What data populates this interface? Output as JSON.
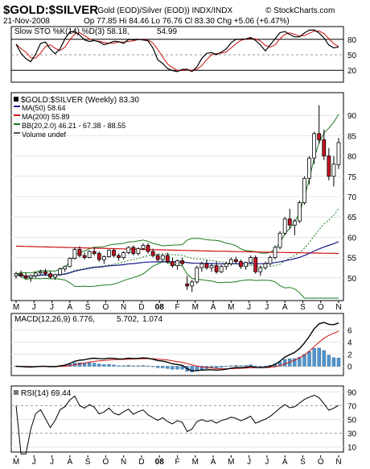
{
  "header": {
    "symbol": "$GOLD:$SILVER",
    "description": "(Gold (EOD)/Silver (EOD))  INDX/INDX",
    "brand": "© StockCharts.com",
    "date": "21-Nov-2008",
    "quote": "Op 77.85  Hi 84.46  Lo 76.76  Cl 83.30  Chg +5.06 (+6.47%)",
    "quote_arrow": "▲"
  },
  "stoch_panel": {
    "label_main": "Slow STO %K(14) %D(3) 58.18,",
    "label_d": "54.99",
    "ticks": [
      "80",
      "50",
      "20"
    ]
  },
  "price_panel": {
    "label": "$GOLD:$SILVER (Weekly) 83.30",
    "legend": [
      {
        "text": "MA(50) 58.64",
        "color": "#1a1a8c"
      },
      {
        "text": "MA(200) 55.89",
        "color": "#cc1111"
      },
      {
        "text": "BB(20,2.0) 46.21 - 67.38 - 88.55",
        "color": "#1a7a1a"
      },
      {
        "text": "Volume undef",
        "color": "#555555"
      }
    ],
    "ticks": [
      "90",
      "85",
      "80",
      "75",
      "70",
      "65",
      "60",
      "55",
      "50"
    ]
  },
  "macd_panel": {
    "label_main": "MACD(12,26,9) 6.776,",
    "label_signal": "5.702,",
    "label_hist": "1.074",
    "ticks": [
      "6",
      "4",
      "2",
      "0"
    ]
  },
  "rsi_panel": {
    "label": "RSI(14) 69.44",
    "ticks": [
      "90",
      "70",
      "50",
      "30",
      "10"
    ]
  },
  "x_axis": {
    "months": [
      "M",
      "J",
      "J",
      "A",
      "S",
      "O",
      "N",
      "D",
      "08",
      "F",
      "M",
      "A",
      "M",
      "J",
      "J",
      "A",
      "S",
      "O",
      "N"
    ]
  },
  "colors": {
    "up": "#ffffff",
    "down": "#cc1122",
    "candle_outline": "#000000",
    "ma50": "#1a1a8c",
    "ma200": "#cc1111",
    "bb": "#1a7a1a",
    "macd_hist": "#4f94cd"
  },
  "chart_data": {
    "type": "candlestick",
    "frequency": "weekly",
    "x_range": [
      "2007-05",
      "2008-11"
    ],
    "ohlc_approx": [
      [
        50.5,
        51.5,
        49.8,
        51.0
      ],
      [
        51.0,
        51.8,
        50.2,
        50.5
      ],
      [
        50.5,
        51.2,
        49.5,
        50.0
      ],
      [
        50.0,
        50.8,
        49.0,
        50.5
      ],
      [
        50.5,
        51.5,
        50.0,
        51.2
      ],
      [
        51.2,
        52.0,
        50.8,
        51.5
      ],
      [
        51.5,
        52.2,
        50.5,
        51.0
      ],
      [
        51.0,
        51.6,
        49.8,
        50.2
      ],
      [
        50.2,
        51.0,
        49.5,
        50.8
      ],
      [
        50.8,
        52.5,
        50.5,
        52.2
      ],
      [
        52.2,
        53.0,
        51.5,
        52.8
      ],
      [
        52.8,
        55.0,
        52.5,
        54.8
      ],
      [
        54.8,
        57.5,
        54.5,
        57.0
      ],
      [
        57.0,
        57.8,
        55.0,
        55.5
      ],
      [
        55.5,
        56.2,
        54.5,
        55.0
      ],
      [
        55.0,
        56.8,
        54.8,
        56.5
      ],
      [
        56.5,
        57.5,
        55.5,
        56.0
      ],
      [
        56.0,
        56.5,
        54.0,
        54.5
      ],
      [
        54.5,
        55.5,
        53.5,
        55.2
      ],
      [
        55.2,
        57.0,
        55.0,
        56.8
      ],
      [
        56.8,
        57.2,
        55.0,
        55.5
      ],
      [
        55.5,
        56.0,
        54.2,
        55.0
      ],
      [
        55.0,
        56.5,
        54.5,
        56.2
      ],
      [
        56.2,
        57.8,
        55.8,
        57.5
      ],
      [
        57.5,
        58.0,
        55.5,
        56.0
      ],
      [
        56.0,
        57.5,
        55.5,
        57.2
      ],
      [
        57.2,
        58.5,
        56.8,
        58.0
      ],
      [
        58.0,
        58.5,
        56.0,
        56.5
      ],
      [
        56.5,
        57.2,
        55.0,
        55.5
      ],
      [
        55.5,
        56.0,
        54.0,
        54.5
      ],
      [
        54.5,
        55.8,
        53.8,
        55.5
      ],
      [
        55.5,
        56.2,
        53.5,
        54.0
      ],
      [
        54.0,
        55.0,
        52.5,
        53.0
      ],
      [
        53.0,
        54.5,
        52.0,
        54.2
      ],
      [
        54.2,
        55.0,
        53.0,
        53.5
      ],
      [
        48.5,
        50.5,
        47.0,
        48.0
      ],
      [
        48.0,
        49.5,
        46.5,
        49.0
      ],
      [
        49.0,
        53.0,
        48.5,
        52.5
      ],
      [
        52.5,
        54.0,
        51.5,
        53.5
      ],
      [
        53.5,
        54.5,
        52.0,
        52.5
      ],
      [
        52.5,
        53.5,
        51.5,
        53.0
      ],
      [
        53.0,
        54.0,
        51.0,
        51.5
      ],
      [
        51.5,
        53.2,
        51.2,
        52.8
      ],
      [
        52.8,
        54.0,
        52.0,
        53.5
      ],
      [
        53.5,
        55.0,
        53.0,
        54.5
      ],
      [
        54.5,
        55.2,
        53.5,
        54.0
      ],
      [
        54.0,
        54.5,
        52.2,
        52.8
      ],
      [
        52.8,
        54.0,
        52.0,
        53.8
      ],
      [
        53.8,
        55.5,
        53.5,
        55.0
      ],
      [
        55.0,
        55.5,
        51.0,
        51.5
      ],
      [
        51.5,
        53.0,
        50.5,
        52.5
      ],
      [
        52.5,
        54.0,
        52.0,
        53.5
      ],
      [
        53.5,
        55.5,
        53.0,
        55.0
      ],
      [
        55.0,
        58.0,
        54.5,
        57.5
      ],
      [
        57.5,
        61.5,
        57.0,
        61.0
      ],
      [
        61.0,
        65.0,
        60.5,
        64.5
      ],
      [
        64.5,
        67.0,
        62.0,
        63.0
      ],
      [
        63.0,
        64.5,
        60.5,
        64.0
      ],
      [
        64.0,
        69.0,
        63.5,
        68.5
      ],
      [
        68.5,
        75.0,
        68.0,
        74.5
      ],
      [
        74.5,
        80.0,
        73.0,
        79.5
      ],
      [
        79.5,
        86.0,
        78.0,
        85.5
      ],
      [
        85.5,
        92.5,
        83.0,
        84.0
      ],
      [
        84.0,
        86.5,
        79.0,
        80.0
      ],
      [
        80.0,
        82.0,
        74.0,
        75.0
      ],
      [
        75.0,
        80.0,
        72.5,
        78.0
      ],
      [
        77.85,
        84.46,
        76.76,
        83.3
      ]
    ],
    "ma50_last": 58.64,
    "ma200_last": 55.89,
    "bb_last": {
      "lower": 46.21,
      "mid": 67.38,
      "upper": 88.55
    },
    "stoch_last": {
      "k": 58.18,
      "d": 54.99
    },
    "macd_last": {
      "macd": 6.776,
      "signal": 5.702,
      "hist": 1.074
    },
    "rsi_last": 69.44
  }
}
